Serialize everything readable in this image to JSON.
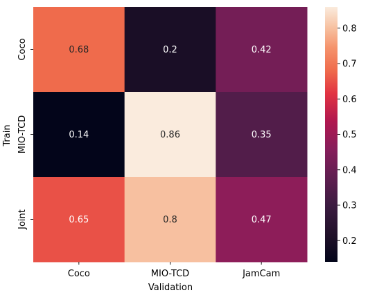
{
  "chart_data": {
    "type": "heatmap",
    "title": "",
    "xlabel": "Validation",
    "ylabel": "Train",
    "x_categories": [
      "Coco",
      "MIO-TCD",
      "JamCam"
    ],
    "y_categories": [
      "Coco",
      "MIO-TCD",
      "Joint"
    ],
    "values": [
      [
        0.68,
        0.2,
        0.42
      ],
      [
        0.14,
        0.86,
        0.35
      ],
      [
        0.65,
        0.8,
        0.47
      ]
    ],
    "annotations": [
      [
        "0.68",
        "0.2",
        "0.42"
      ],
      [
        "0.14",
        "0.86",
        "0.35"
      ],
      [
        "0.65",
        "0.8",
        "0.47"
      ]
    ],
    "colormap": "rocket",
    "vmin": 0.14,
    "vmax": 0.86,
    "colorbar_ticks": [
      0.2,
      0.3,
      0.4,
      0.5,
      0.6,
      0.7,
      0.8
    ],
    "colorbar_tick_labels": [
      "0.2",
      "0.3",
      "0.4",
      "0.5",
      "0.6",
      "0.7",
      "0.8"
    ],
    "colorbar_placement": "right",
    "grid": false,
    "legend": "none"
  }
}
